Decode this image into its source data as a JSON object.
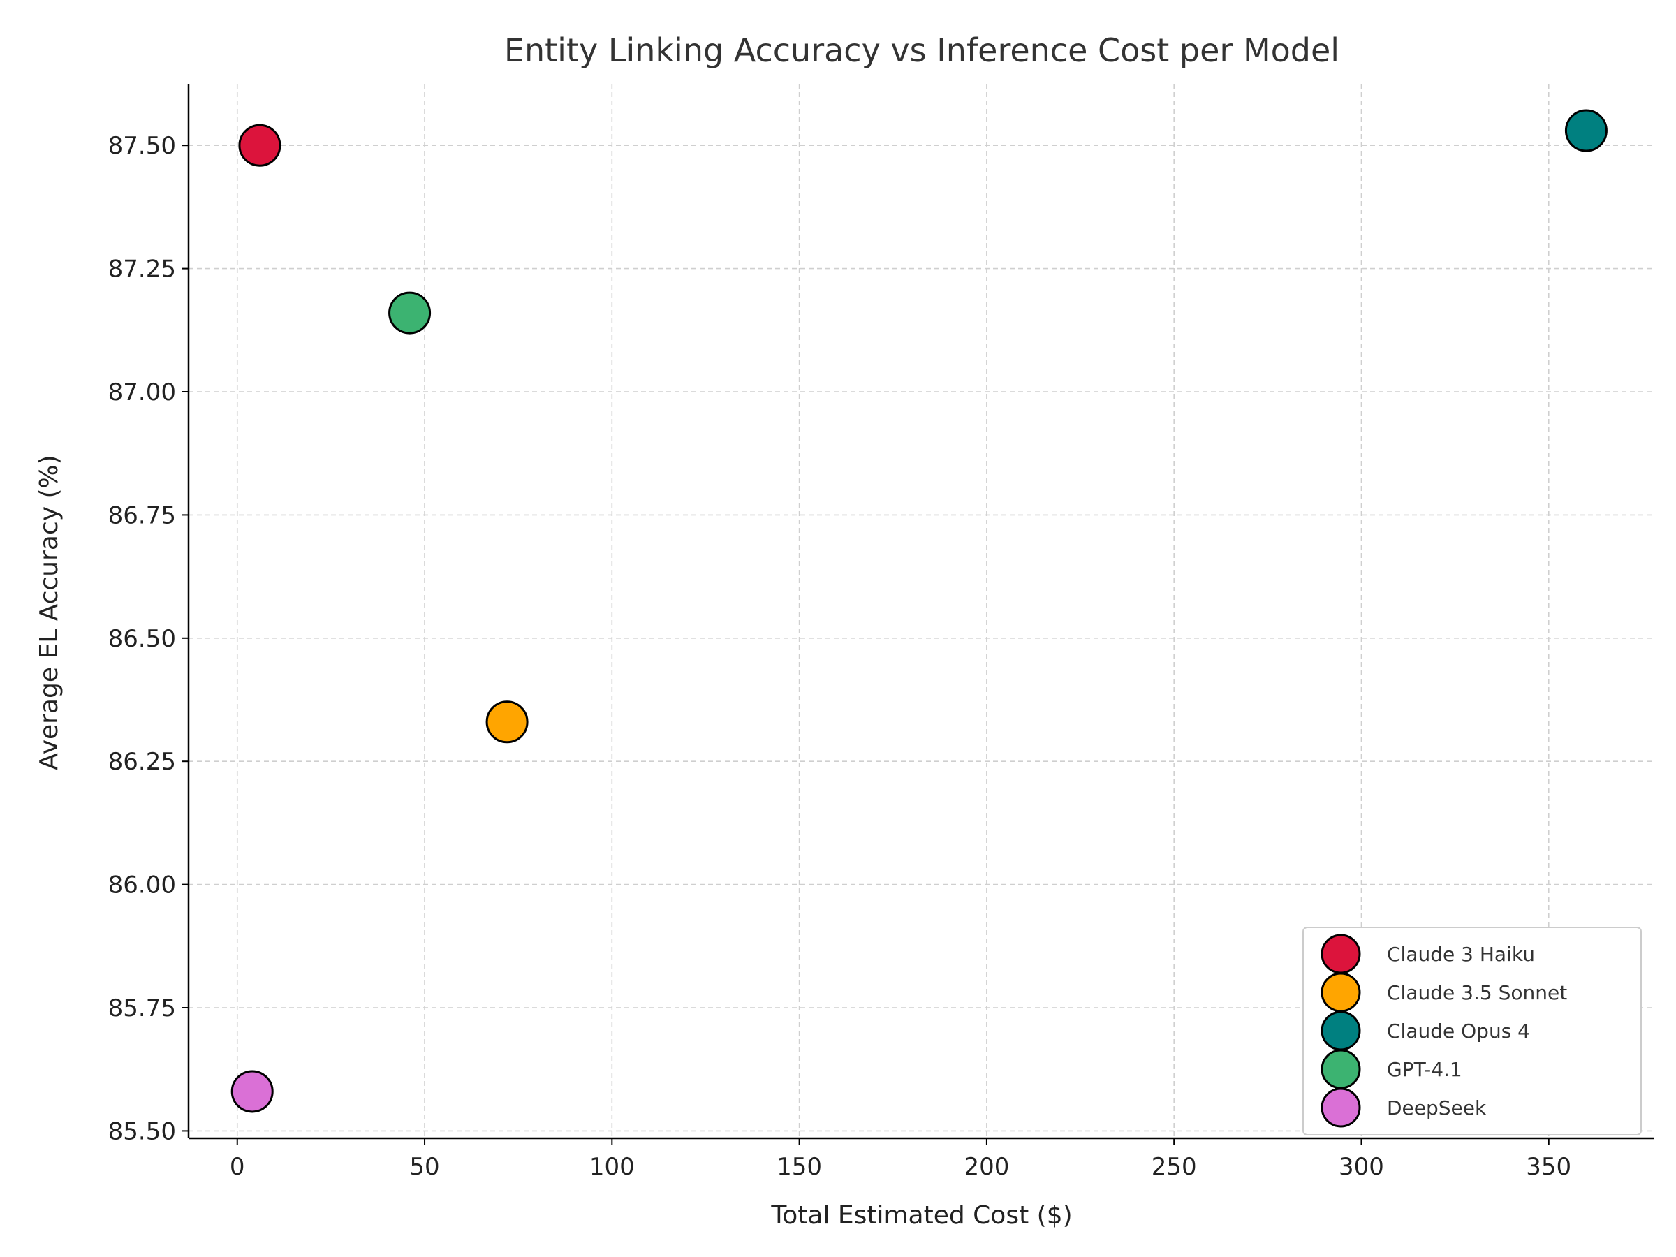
{
  "chart_data": {
    "type": "scatter",
    "title": "Entity Linking Accuracy vs Inference Cost per Model",
    "xlabel": "Total Estimated Cost ($)",
    "ylabel": "Average EL Accuracy (%)",
    "xlim": [
      -13,
      378
    ],
    "ylim": [
      85.485,
      87.625
    ],
    "xticks": [
      0,
      50,
      100,
      150,
      200,
      250,
      300,
      350
    ],
    "yticks": [
      85.5,
      85.75,
      86.0,
      86.25,
      86.5,
      86.75,
      87.0,
      87.25,
      87.5
    ],
    "ytick_labels": [
      "85.50",
      "85.75",
      "86.00",
      "86.25",
      "86.50",
      "86.75",
      "87.00",
      "87.25",
      "87.50"
    ],
    "grid": true,
    "legend_position": "lower-right",
    "series": [
      {
        "name": "Claude 3 Haiku",
        "x": 6,
        "y": 87.5,
        "color": "#DC143C"
      },
      {
        "name": "Claude 3.5 Sonnet",
        "x": 72,
        "y": 86.33,
        "color": "#FFA500"
      },
      {
        "name": "Claude Opus 4",
        "x": 360,
        "y": 87.53,
        "color": "#008080"
      },
      {
        "name": "GPT-4.1",
        "x": 46,
        "y": 87.16,
        "color": "#3CB371"
      },
      {
        "name": "DeepSeek",
        "x": 4,
        "y": 85.58,
        "color": "#DA70D6"
      }
    ]
  }
}
